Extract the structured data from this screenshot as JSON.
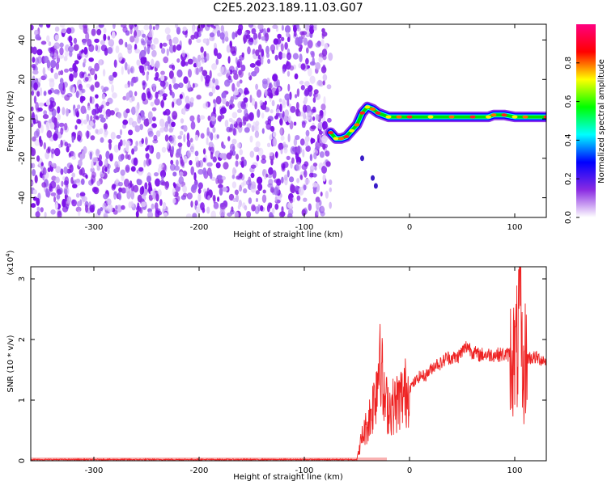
{
  "figure_title": "C2E5.2023.189.11.03.G07",
  "chart_data": [
    {
      "type": "heatmap",
      "xlabel": "Height of straight line (km)",
      "ylabel": "Frequency (Hz)",
      "xlim": [
        -360,
        130
      ],
      "ylim": [
        -50,
        48
      ],
      "xticks": [
        -300,
        -200,
        -100,
        0,
        100
      ],
      "yticks": [
        -40,
        -20,
        0,
        20,
        40
      ],
      "noise_region_x": [
        -360,
        -75
      ],
      "trace": {
        "x": [
          -75,
          -70,
          -65,
          -60,
          -55,
          -50,
          -45,
          -40,
          -35,
          -30,
          -20,
          -10,
          0,
          20,
          40,
          60,
          75,
          80,
          90,
          100,
          110,
          130
        ],
        "y": [
          -7,
          -10,
          -10,
          -9,
          -6,
          -3,
          3,
          6,
          5,
          3,
          1,
          1,
          1,
          1,
          1,
          1,
          1,
          2,
          2,
          1,
          1,
          1
        ]
      },
      "secondary_points": [
        {
          "x": -45,
          "y": -20
        },
        {
          "x": -35,
          "y": -30
        },
        {
          "x": -32,
          "y": -34
        }
      ],
      "colorbar": {
        "label": "Normalized spectral amplitude",
        "range": [
          0,
          1
        ],
        "ticks": [
          "0.0",
          "0.2",
          "0.4",
          "0.6",
          "0.8"
        ],
        "colors": [
          "#ffffff",
          "#8a2be2",
          "#0000ff",
          "#00ffff",
          "#00ff00",
          "#ffff00",
          "#ff0000",
          "#ff0080"
        ]
      }
    },
    {
      "type": "line",
      "xlabel": "Height of straight line (km)",
      "ylabel": "SNR (10 * v/v)",
      "yscale_label": "(x10",
      "yscale_exp": "4",
      "xlim": [
        -360,
        130
      ],
      "ylim": [
        0,
        3.2
      ],
      "xticks": [
        -300,
        -200,
        -100,
        0,
        100
      ],
      "yticks": [
        0,
        1,
        2,
        3
      ],
      "color": "#ee2222",
      "series": [
        {
          "x": [
            -360,
            -300,
            -200,
            -100,
            -50,
            -45,
            -40,
            -35,
            -30,
            -28,
            -25,
            -20,
            -15,
            -10,
            -5,
            0,
            5,
            10,
            15,
            20,
            25,
            30,
            35,
            40,
            45,
            50,
            55,
            60,
            65,
            70,
            80,
            90,
            95,
            100,
            103,
            105,
            108,
            110,
            115,
            120,
            130
          ],
          "values": [
            0.02,
            0.02,
            0.02,
            0.02,
            0.02,
            0.4,
            0.6,
            0.9,
            1.4,
            2.2,
            1.0,
            0.9,
            0.9,
            1.0,
            1.1,
            1.2,
            1.3,
            1.4,
            1.4,
            1.5,
            1.6,
            1.6,
            1.7,
            1.7,
            1.7,
            1.8,
            1.9,
            1.8,
            1.75,
            1.75,
            1.75,
            1.75,
            1.75,
            1.7,
            1.9,
            2.6,
            1.2,
            1.7,
            1.7,
            1.7,
            1.65
          ]
        }
      ]
    }
  ]
}
